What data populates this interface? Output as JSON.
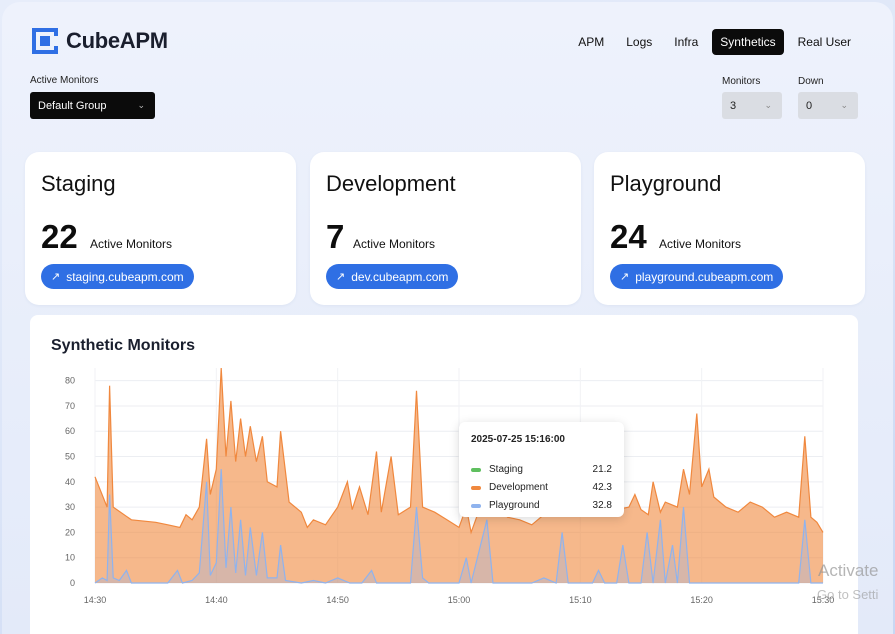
{
  "app": {
    "name": "CubeAPM"
  },
  "nav": [
    "APM",
    "Logs",
    "Infra",
    "Synthetics",
    "Real User"
  ],
  "nav_active": "Synthetics",
  "filters": {
    "active_monitors_label": "Active Monitors",
    "group_value": "Default Group",
    "monitors_label": "Monitors",
    "monitors_value": "3",
    "down_label": "Down",
    "down_value": "0"
  },
  "cards": [
    {
      "title": "Staging",
      "count": "22",
      "sub": "Active Monitors",
      "link": "staging.cubeapm.com"
    },
    {
      "title": "Development",
      "count": "7",
      "sub": "Active Monitors",
      "link": "dev.cubeapm.com"
    },
    {
      "title": "Playground",
      "count": "24",
      "sub": "Active Monitors",
      "link": "playground.cubeapm.com"
    }
  ],
  "panel": {
    "title": "Synthetic Monitors"
  },
  "tooltip": {
    "time": "2025-07-25 15:16:00",
    "rows": [
      {
        "label": "Staging",
        "value": "21.2",
        "color": "#5fbf5f"
      },
      {
        "label": "Development",
        "value": "42.3",
        "color": "#f0883e"
      },
      {
        "label": "Playground",
        "value": "32.8",
        "color": "#8fb3ee"
      }
    ]
  },
  "watermark": {
    "line1": "Activate",
    "line2": "Go to Setti"
  },
  "chart_data": {
    "type": "area",
    "xlabel": "",
    "ylabel": "",
    "ylim": [
      0,
      85
    ],
    "yticks": [
      0,
      10,
      20,
      30,
      40,
      50,
      60,
      70,
      80
    ],
    "xticks": [
      "14:30",
      "14:40",
      "14:50",
      "15:00",
      "15:10",
      "15:20",
      "15:30"
    ],
    "x_range_minutes": [
      0,
      60
    ],
    "grid": true,
    "series": [
      {
        "name": "Development",
        "color": "#f0883e",
        "points": [
          [
            0,
            42
          ],
          [
            1,
            30
          ],
          [
            1.2,
            78
          ],
          [
            1.5,
            30
          ],
          [
            3,
            25
          ],
          [
            5,
            24
          ],
          [
            6,
            23
          ],
          [
            7,
            22
          ],
          [
            7.5,
            27
          ],
          [
            8,
            25
          ],
          [
            8.6,
            30
          ],
          [
            9.2,
            57
          ],
          [
            9.5,
            35
          ],
          [
            10,
            45
          ],
          [
            10.4,
            85
          ],
          [
            10.8,
            50
          ],
          [
            11.2,
            72
          ],
          [
            11.6,
            48
          ],
          [
            12,
            65
          ],
          [
            12.4,
            50
          ],
          [
            12.8,
            62
          ],
          [
            13.3,
            48
          ],
          [
            13.8,
            58
          ],
          [
            14.2,
            40
          ],
          [
            15,
            38
          ],
          [
            15.3,
            60
          ],
          [
            16,
            32
          ],
          [
            17,
            28
          ],
          [
            17.5,
            22
          ],
          [
            18,
            25
          ],
          [
            19,
            23
          ],
          [
            20,
            30
          ],
          [
            20.8,
            40
          ],
          [
            21.2,
            29
          ],
          [
            21.8,
            38
          ],
          [
            22.5,
            27
          ],
          [
            23.2,
            52
          ],
          [
            23.6,
            28
          ],
          [
            24.4,
            50
          ],
          [
            25,
            27
          ],
          [
            26,
            30
          ],
          [
            26.5,
            76
          ],
          [
            27,
            30
          ],
          [
            28,
            28
          ],
          [
            29,
            25
          ],
          [
            30,
            22
          ],
          [
            30.6,
            30
          ],
          [
            31,
            20
          ],
          [
            31.6,
            28
          ],
          [
            32.3,
            52
          ],
          [
            32.8,
            27
          ],
          [
            33.5,
            30
          ],
          [
            34,
            26
          ],
          [
            35,
            25
          ],
          [
            36,
            23
          ],
          [
            37,
            27
          ],
          [
            38,
            28
          ],
          [
            39,
            30
          ],
          [
            40,
            32
          ],
          [
            41,
            30
          ],
          [
            42,
            28
          ],
          [
            42.5,
            40
          ],
          [
            43,
            29
          ],
          [
            44,
            30
          ],
          [
            44.5,
            35
          ],
          [
            45,
            29
          ],
          [
            45.6,
            27
          ],
          [
            46,
            40
          ],
          [
            46.6,
            28
          ],
          [
            47,
            32
          ],
          [
            48,
            30
          ],
          [
            48.5,
            45
          ],
          [
            49,
            35
          ],
          [
            49.6,
            67
          ],
          [
            50,
            38
          ],
          [
            50.6,
            45
          ],
          [
            51,
            34
          ],
          [
            52,
            30
          ],
          [
            53,
            28
          ],
          [
            54,
            32
          ],
          [
            55,
            30
          ],
          [
            56,
            26
          ],
          [
            57,
            28
          ],
          [
            58,
            26
          ],
          [
            58.5,
            58
          ],
          [
            59,
            26
          ],
          [
            59.5,
            24
          ],
          [
            60,
            20
          ]
        ]
      },
      {
        "name": "Playground",
        "color": "#8fb3ee",
        "points": [
          [
            0,
            0
          ],
          [
            0.6,
            2
          ],
          [
            1,
            1
          ],
          [
            1.2,
            35
          ],
          [
            1.5,
            2
          ],
          [
            2,
            1
          ],
          [
            2.6,
            5
          ],
          [
            3,
            0
          ],
          [
            6,
            0
          ],
          [
            6.8,
            5
          ],
          [
            7.2,
            0
          ],
          [
            8,
            1
          ],
          [
            8.6,
            4
          ],
          [
            9.2,
            40
          ],
          [
            9.5,
            3
          ],
          [
            10,
            8
          ],
          [
            10.4,
            45
          ],
          [
            10.8,
            6
          ],
          [
            11.2,
            30
          ],
          [
            11.6,
            4
          ],
          [
            12,
            25
          ],
          [
            12.4,
            3
          ],
          [
            12.8,
            22
          ],
          [
            13.3,
            3
          ],
          [
            13.8,
            20
          ],
          [
            14.2,
            2
          ],
          [
            15,
            2
          ],
          [
            15.3,
            15
          ],
          [
            15.7,
            1
          ],
          [
            17,
            0
          ],
          [
            18,
            1
          ],
          [
            19,
            0
          ],
          [
            20,
            2
          ],
          [
            21,
            0
          ],
          [
            22,
            0
          ],
          [
            22.8,
            5
          ],
          [
            23.2,
            0
          ],
          [
            25,
            0
          ],
          [
            26,
            0
          ],
          [
            26.5,
            30
          ],
          [
            27,
            2
          ],
          [
            27.5,
            0
          ],
          [
            30,
            0
          ],
          [
            30.6,
            10
          ],
          [
            31,
            0
          ],
          [
            32.3,
            25
          ],
          [
            32.8,
            0
          ],
          [
            34,
            0
          ],
          [
            36,
            0
          ],
          [
            37,
            2
          ],
          [
            38,
            0
          ],
          [
            38.5,
            20
          ],
          [
            39,
            0
          ],
          [
            40,
            0
          ],
          [
            41,
            0
          ],
          [
            41.5,
            5
          ],
          [
            42,
            0
          ],
          [
            43,
            0
          ],
          [
            43.5,
            15
          ],
          [
            44,
            0
          ],
          [
            45,
            0
          ],
          [
            45.5,
            20
          ],
          [
            46,
            0
          ],
          [
            46.6,
            25
          ],
          [
            47,
            0
          ],
          [
            47.6,
            15
          ],
          [
            48,
            0
          ],
          [
            48.5,
            30
          ],
          [
            49,
            0
          ],
          [
            50,
            0
          ],
          [
            51,
            0
          ],
          [
            52,
            0
          ],
          [
            53,
            0
          ],
          [
            54,
            0
          ],
          [
            55,
            0
          ],
          [
            56,
            0
          ],
          [
            57,
            0
          ],
          [
            58,
            0
          ],
          [
            58.5,
            25
          ],
          [
            59,
            0
          ],
          [
            60,
            0
          ]
        ]
      },
      {
        "name": "Staging",
        "color": "#5fbf5f",
        "points": []
      }
    ]
  }
}
